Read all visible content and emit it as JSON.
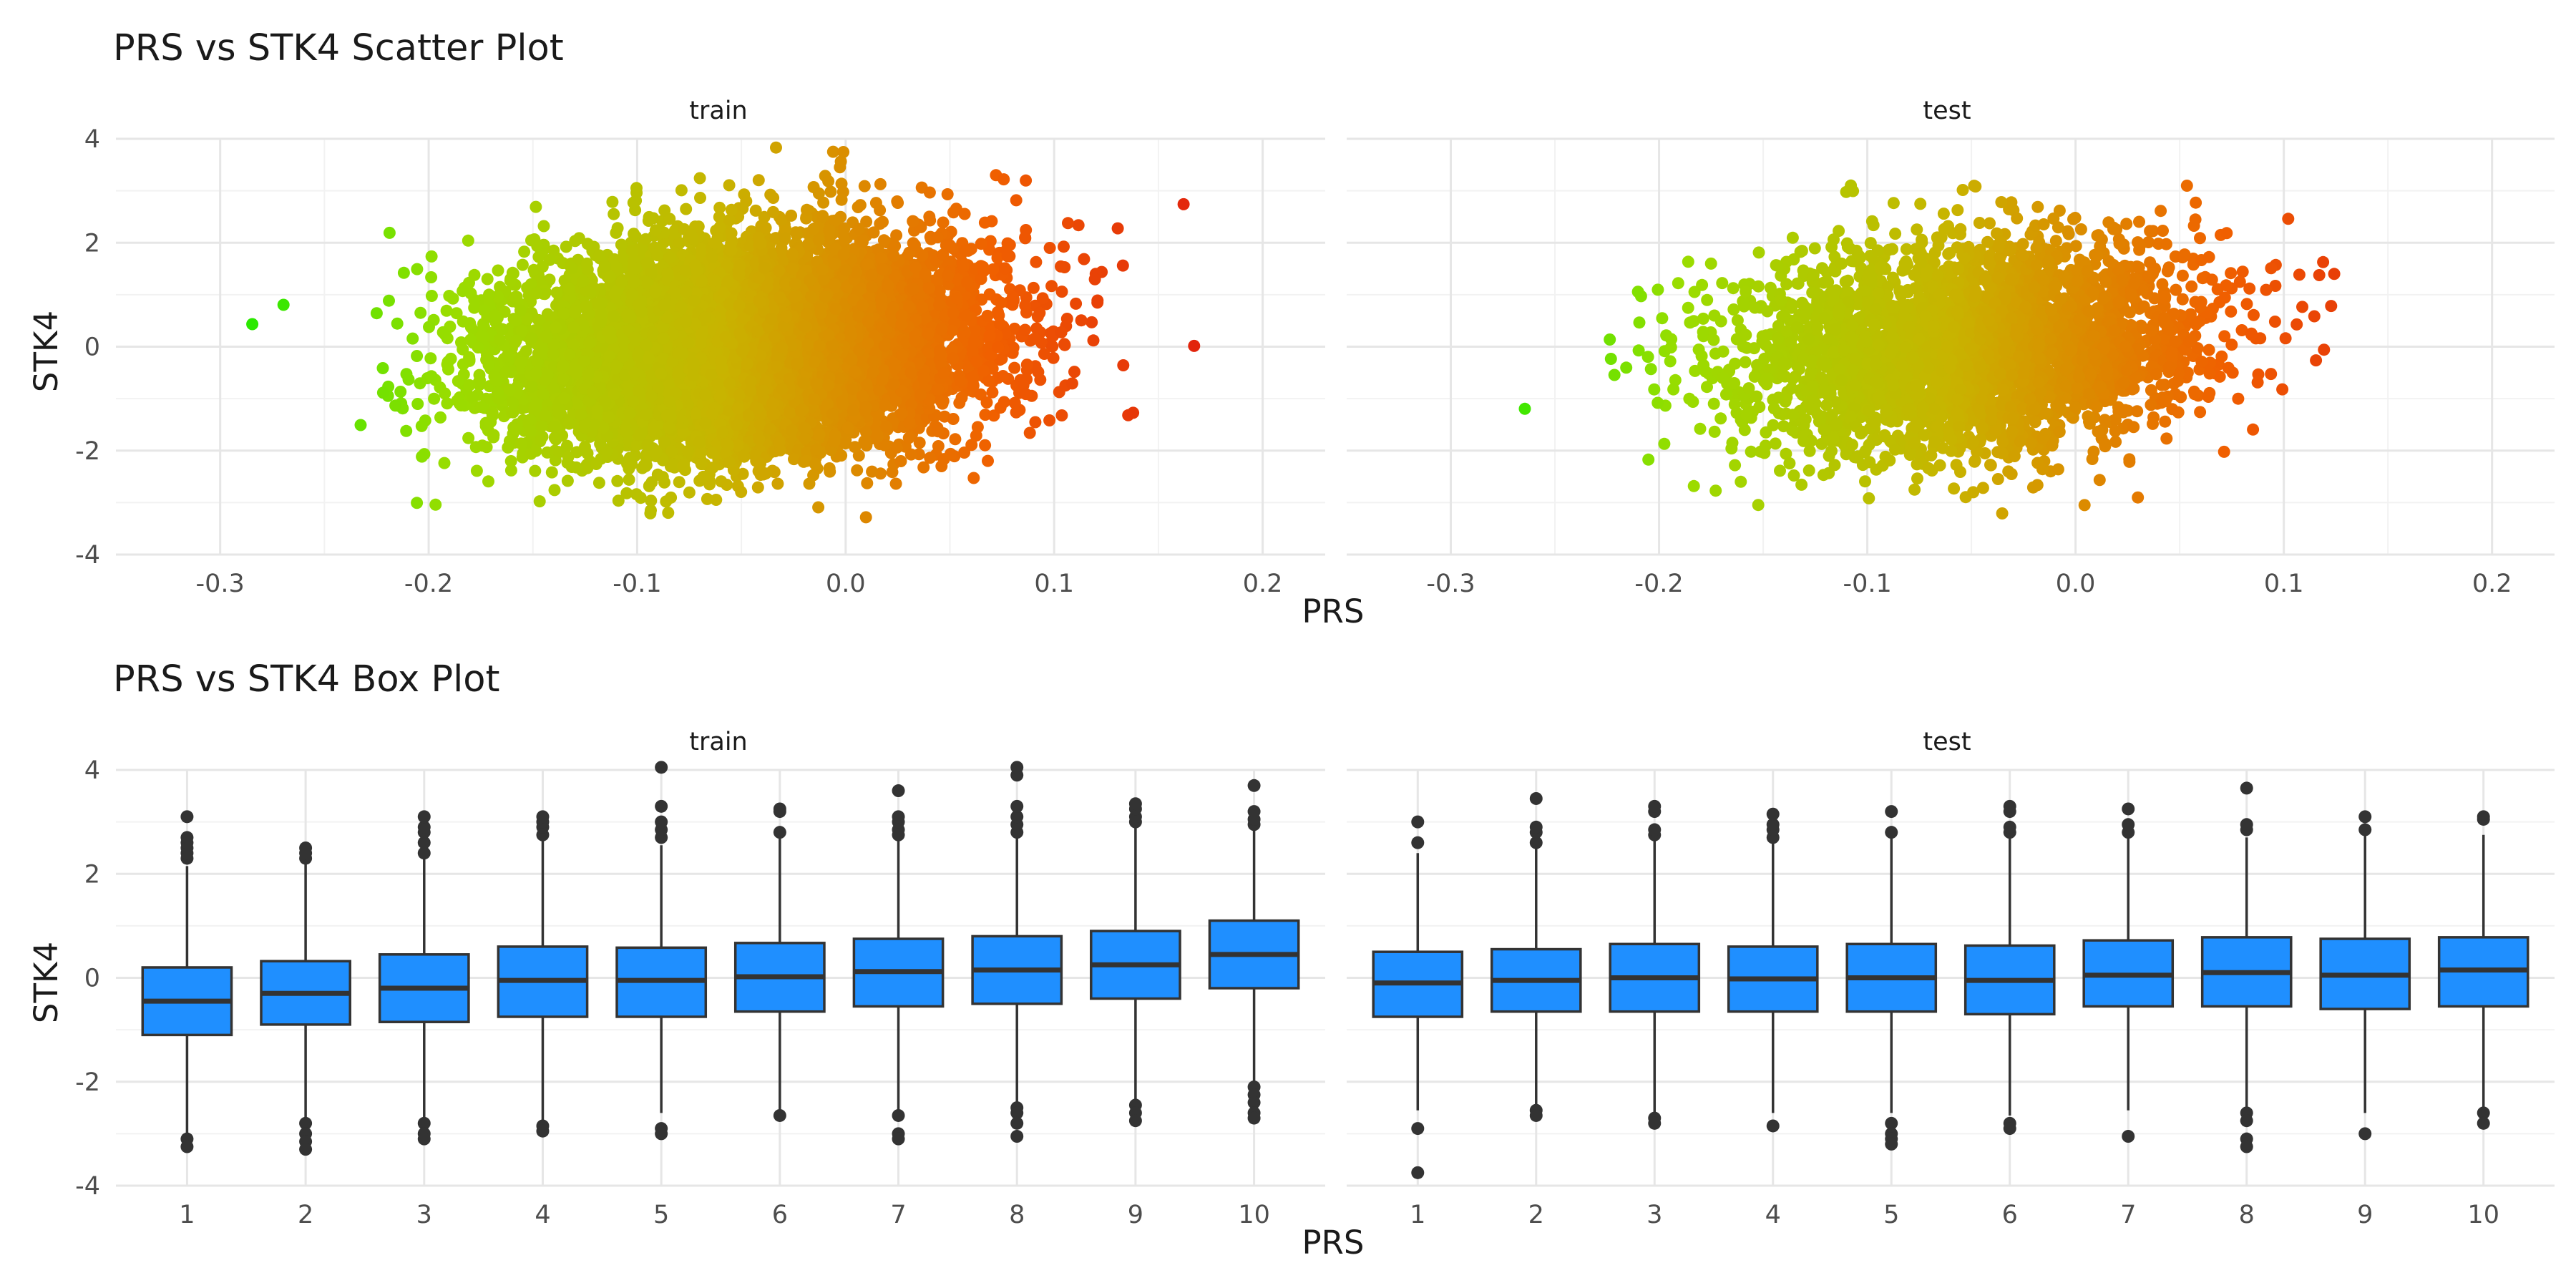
{
  "chart_data": [
    {
      "type": "scatter",
      "title": "PRS vs STK4 Scatter Plot",
      "xlabel": "PRS",
      "ylabel": "STK4",
      "facets": [
        "train",
        "test"
      ],
      "xlim": [
        -0.35,
        0.23
      ],
      "ylim": [
        -4,
        4
      ],
      "x_ticks": [
        -0.3,
        -0.2,
        -0.1,
        0.0,
        0.1,
        0.2
      ],
      "x_tick_labels": [
        "-0.3",
        "-0.2",
        "-0.1",
        "0.0",
        "0.1",
        "0.2"
      ],
      "y_ticks": [
        -4,
        -2,
        0,
        2,
        4
      ],
      "y_tick_labels": [
        "-4",
        "-2",
        "0",
        "2",
        "4"
      ],
      "grid": true,
      "color_gradient": [
        "#00ee00",
        "#99dd00",
        "#c8b400",
        "#f06000",
        "#dd1010"
      ],
      "point_cloud": {
        "train": {
          "n": 9000,
          "x_mean": -0.05,
          "x_sd": 0.055,
          "x_range": [
            -0.33,
            0.21
          ],
          "y_mean": 0.0,
          "y_sd": 1.0,
          "y_range": [
            -3.3,
            4.1
          ]
        },
        "test": {
          "n": 3500,
          "x_mean": -0.05,
          "x_sd": 0.055,
          "x_range": [
            -0.28,
            0.18
          ],
          "y_mean": 0.0,
          "y_sd": 1.0,
          "y_range": [
            -3.8,
            3.7
          ]
        }
      }
    },
    {
      "type": "box",
      "title": "PRS vs STK4 Box Plot",
      "xlabel": "PRS",
      "ylabel": "STK4",
      "facets": [
        "train",
        "test"
      ],
      "categories": [
        "1",
        "2",
        "3",
        "4",
        "5",
        "6",
        "7",
        "8",
        "9",
        "10"
      ],
      "ylim": [
        -4,
        4
      ],
      "y_ticks": [
        -4,
        -2,
        0,
        2,
        4
      ],
      "y_tick_labels": [
        "-4",
        "-2",
        "0",
        "2",
        "4"
      ],
      "grid": true,
      "box_color": "#1f8fff",
      "series": [
        {
          "facet": "train",
          "boxes": [
            {
              "q1": -1.1,
              "median": -0.45,
              "q3": 0.2,
              "lower": -3.0,
              "upper": 2.15,
              "outliers": [
                2.3,
                2.4,
                2.5,
                2.6,
                2.7,
                3.1,
                -3.1,
                -3.25
              ]
            },
            {
              "q1": -0.9,
              "median": -0.3,
              "q3": 0.32,
              "lower": -2.7,
              "upper": 2.2,
              "outliers": [
                2.3,
                2.4,
                2.5,
                -2.8,
                -3.0,
                -3.15,
                -3.3
              ]
            },
            {
              "q1": -0.85,
              "median": -0.2,
              "q3": 0.45,
              "lower": -2.7,
              "upper": 2.3,
              "outliers": [
                2.4,
                2.6,
                2.8,
                2.9,
                3.1,
                -2.8,
                -3.0,
                -3.1
              ]
            },
            {
              "q1": -0.75,
              "median": -0.05,
              "q3": 0.6,
              "lower": -2.75,
              "upper": 2.65,
              "outliers": [
                2.75,
                2.9,
                3.0,
                3.1,
                -2.85,
                -2.95
              ]
            },
            {
              "q1": -0.75,
              "median": -0.05,
              "q3": 0.58,
              "lower": -2.6,
              "upper": 2.55,
              "outliers": [
                2.7,
                2.85,
                3.0,
                3.3,
                4.05,
                -2.9,
                -3.0
              ]
            },
            {
              "q1": -0.65,
              "median": 0.02,
              "q3": 0.67,
              "lower": -2.6,
              "upper": 2.7,
              "outliers": [
                2.8,
                3.2,
                3.25,
                -2.65
              ]
            },
            {
              "q1": -0.55,
              "median": 0.12,
              "q3": 0.75,
              "lower": -2.6,
              "upper": 2.65,
              "outliers": [
                2.75,
                2.85,
                3.0,
                3.1,
                3.6,
                -2.65,
                -3.0,
                -3.1
              ]
            },
            {
              "q1": -0.5,
              "median": 0.15,
              "q3": 0.8,
              "lower": -2.4,
              "upper": 2.7,
              "outliers": [
                2.8,
                2.95,
                3.1,
                3.3,
                3.9,
                4.05,
                -2.5,
                -2.6,
                -2.8,
                -3.05
              ]
            },
            {
              "q1": -0.4,
              "median": 0.25,
              "q3": 0.9,
              "lower": -2.35,
              "upper": 2.9,
              "outliers": [
                3.0,
                3.1,
                3.25,
                3.35,
                -2.45,
                -2.6,
                -2.75
              ]
            },
            {
              "q1": -0.2,
              "median": 0.45,
              "q3": 1.1,
              "lower": -2.0,
              "upper": 2.85,
              "outliers": [
                2.95,
                3.05,
                3.2,
                3.7,
                -2.1,
                -2.25,
                -2.4,
                -2.6,
                -2.7
              ]
            }
          ]
        },
        {
          "facet": "test",
          "boxes": [
            {
              "q1": -0.75,
              "median": -0.1,
              "q3": 0.5,
              "lower": -2.55,
              "upper": 2.4,
              "outliers": [
                2.6,
                3.0,
                -2.9,
                -3.75
              ]
            },
            {
              "q1": -0.65,
              "median": -0.05,
              "q3": 0.55,
              "lower": -2.5,
              "upper": 2.5,
              "outliers": [
                2.6,
                2.8,
                2.9,
                3.45,
                -2.55,
                -2.65
              ]
            },
            {
              "q1": -0.65,
              "median": 0.0,
              "q3": 0.65,
              "lower": -2.6,
              "upper": 2.65,
              "outliers": [
                2.75,
                2.85,
                3.2,
                3.3,
                -2.7,
                -2.8
              ]
            },
            {
              "q1": -0.65,
              "median": -0.02,
              "q3": 0.6,
              "lower": -2.6,
              "upper": 2.6,
              "outliers": [
                2.7,
                2.85,
                2.95,
                3.15,
                -2.85
              ]
            },
            {
              "q1": -0.65,
              "median": 0.0,
              "q3": 0.65,
              "lower": -2.6,
              "upper": 2.7,
              "outliers": [
                2.8,
                3.2,
                -2.8,
                -3.0,
                -3.1,
                -3.2
              ]
            },
            {
              "q1": -0.7,
              "median": -0.05,
              "q3": 0.62,
              "lower": -2.65,
              "upper": 2.7,
              "outliers": [
                2.8,
                2.9,
                3.2,
                3.3,
                -2.8,
                -2.9
              ]
            },
            {
              "q1": -0.55,
              "median": 0.05,
              "q3": 0.72,
              "lower": -2.55,
              "upper": 2.7,
              "outliers": [
                2.8,
                2.95,
                3.25,
                -3.05
              ]
            },
            {
              "q1": -0.55,
              "median": 0.1,
              "q3": 0.78,
              "lower": -2.5,
              "upper": 2.7,
              "outliers": [
                2.85,
                2.95,
                3.65,
                -2.6,
                -2.75,
                -3.1,
                -3.25
              ]
            },
            {
              "q1": -0.6,
              "median": 0.05,
              "q3": 0.75,
              "lower": -2.6,
              "upper": 2.75,
              "outliers": [
                2.85,
                3.1,
                -3.0
              ]
            },
            {
              "q1": -0.55,
              "median": 0.15,
              "q3": 0.78,
              "lower": -2.5,
              "upper": 2.75,
              "outliers": [
                3.05,
                3.1,
                -2.6,
                -2.8
              ]
            }
          ]
        }
      ]
    }
  ]
}
